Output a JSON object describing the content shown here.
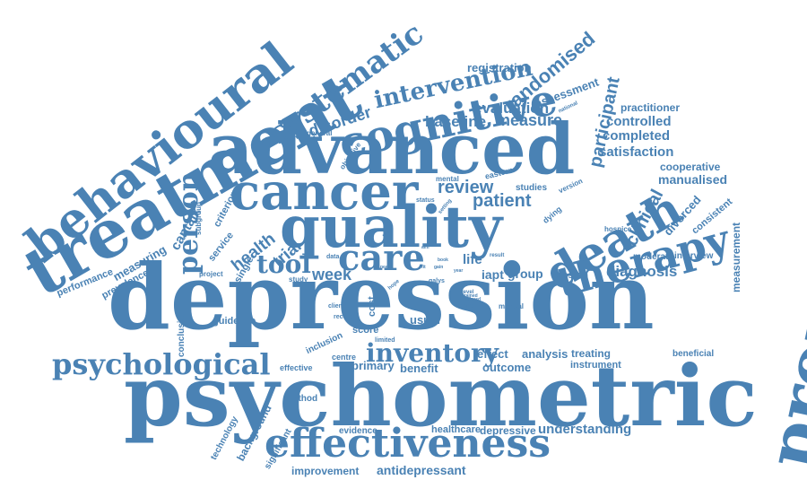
{
  "colors": {
    "word": "#4a82b4",
    "background": "#ffffff"
  },
  "words": [
    "depression",
    "psychometric",
    "advanced",
    "treatment",
    "behavioural",
    "properties",
    "quality",
    "cancer",
    "effectiveness",
    "death",
    "cognitive",
    "systematic",
    "therapy",
    "care",
    "psychological",
    "intervention",
    "person",
    "inventory",
    "tool",
    "patient",
    "review",
    "randomised",
    "participant",
    "clinical",
    "measure",
    "baseline",
    "disorder",
    "evaluation",
    "registration",
    "assessment",
    "controlled",
    "completed",
    "satisfaction",
    "practitioner",
    "cooperative",
    "manualised",
    "divorced",
    "consistent",
    "measurement",
    "diagnosis",
    "interview",
    "session",
    "group",
    "iapt",
    "week",
    "health",
    "trial",
    "cantalk",
    "criterion",
    "service",
    "single",
    "measuring",
    "prevalence",
    "performance",
    "conclusion",
    "guideline",
    "analysis",
    "effect",
    "primary",
    "benefit",
    "outcome",
    "treating",
    "instrument",
    "beneficial",
    "understanding",
    "depressive",
    "healthcare",
    "evidence",
    "improvement",
    "antidepressant",
    "significant",
    "background",
    "technology",
    "method",
    "effective",
    "centre",
    "inclusion",
    "score",
    "usual",
    "life",
    "moderate",
    "hospice",
    "dying",
    "studies",
    "version",
    "eastern",
    "mental",
    "status",
    "general",
    "objective",
    "subgroup",
    "project",
    "study",
    "client",
    "data",
    "cost",
    "receipt",
    "limited",
    "manual",
    "month",
    "qalys",
    "level",
    "result",
    "national",
    "setting",
    "hope",
    "book",
    "need",
    "tailored",
    "year",
    "fit",
    "trained",
    "gain",
    "aim",
    "rate"
  ]
}
